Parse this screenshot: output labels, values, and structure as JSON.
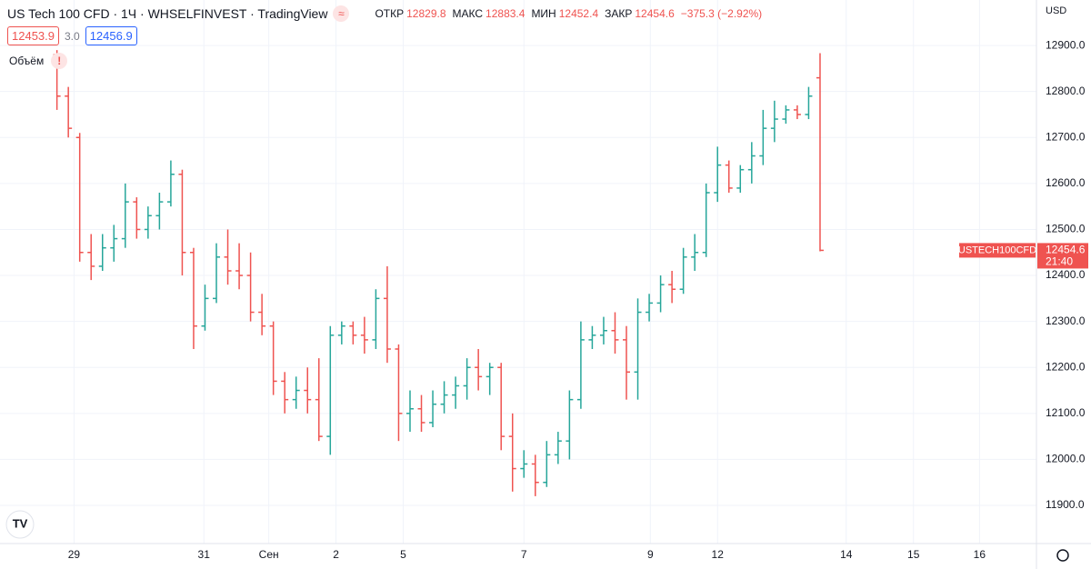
{
  "header": {
    "title": "US Tech 100 CFD · 1Ч · WHSELFINVEST · TradingView",
    "open_label": "ОТКР",
    "open": "12829.8",
    "high_label": "МАКС",
    "high": "12883.4",
    "low_label": "МИН",
    "low": "12452.4",
    "close_label": "ЗАКР",
    "close": "12454.6",
    "change": "−375.3 (−2.92%)"
  },
  "quote": {
    "bid": "12453.9",
    "spread": "3.0",
    "ask": "12456.9"
  },
  "volume_label": "Объём",
  "currency": "USD",
  "price_tag": {
    "symbol": "USTECH100CFD",
    "price": "12454.6",
    "countdown": "21:40"
  },
  "chart_data": {
    "type": "ohlc",
    "up_color": "#26a69a",
    "down_color": "#ef5350",
    "grid": true,
    "x": [
      0,
      1,
      2,
      3,
      4,
      5,
      6,
      7,
      8,
      9,
      10,
      11,
      12,
      13,
      14,
      15,
      16,
      17,
      18,
      19,
      20,
      21,
      22,
      23,
      24,
      25,
      26,
      27,
      28,
      29,
      30,
      31,
      32,
      33,
      34,
      35,
      36,
      37,
      38,
      39,
      40,
      41,
      42,
      43,
      44,
      45,
      46,
      47,
      48,
      49,
      50,
      51,
      52,
      53,
      54,
      55,
      56,
      57,
      58,
      59,
      60,
      61,
      62,
      63,
      64,
      65,
      66,
      67
    ],
    "open": [
      12880,
      12790,
      12700,
      12450,
      12420,
      12460,
      12480,
      12560,
      12500,
      12530,
      12560,
      12620,
      12450,
      12290,
      12350,
      12440,
      12410,
      12400,
      12320,
      12290,
      12170,
      12130,
      12150,
      12130,
      12050,
      12270,
      12290,
      12270,
      12260,
      12350,
      12240,
      12100,
      12110,
      12080,
      12120,
      12140,
      12160,
      12200,
      12180,
      12200,
      12050,
      11980,
      11990,
      11950,
      12010,
      12040,
      12130,
      12260,
      12270,
      12280,
      12260,
      12190,
      12320,
      12340,
      12380,
      12370,
      12440,
      12450,
      12580,
      12640,
      12590,
      12630,
      12660,
      12720,
      12740,
      12760,
      12750,
      12829.8
    ],
    "high": [
      12890,
      12810,
      12710,
      12490,
      12490,
      12510,
      12600,
      12570,
      12550,
      12580,
      12650,
      12630,
      12460,
      12380,
      12470,
      12500,
      12470,
      12450,
      12360,
      12300,
      12190,
      12180,
      12200,
      12220,
      12290,
      12300,
      12300,
      12310,
      12370,
      12420,
      12250,
      12150,
      12140,
      12150,
      12170,
      12180,
      12220,
      12240,
      12210,
      12210,
      12100,
      12020,
      12010,
      12040,
      12060,
      12150,
      12300,
      12290,
      12310,
      12320,
      12290,
      12350,
      12360,
      12400,
      12410,
      12460,
      12490,
      12600,
      12680,
      12650,
      12640,
      12690,
      12760,
      12780,
      12770,
      12770,
      12810,
      12883.4
    ],
    "low": [
      12760,
      12700,
      12430,
      12390,
      12410,
      12430,
      12460,
      12480,
      12480,
      12500,
      12550,
      12400,
      12240,
      12280,
      12340,
      12380,
      12370,
      12300,
      12270,
      12140,
      12100,
      12110,
      12100,
      12040,
      12010,
      12250,
      12250,
      12230,
      12240,
      12210,
      12040,
      12060,
      12060,
      12070,
      12100,
      12110,
      12130,
      12150,
      12140,
      12020,
      11930,
      11960,
      11920,
      11940,
      11990,
      12000,
      12110,
      12240,
      12250,
      12230,
      12130,
      12130,
      12300,
      12320,
      12340,
      12360,
      12410,
      12440,
      12560,
      12580,
      12580,
      12600,
      12640,
      12690,
      12730,
      12740,
      12740,
      12452.4
    ],
    "close": [
      12790,
      12720,
      12450,
      12420,
      12460,
      12480,
      12560,
      12500,
      12530,
      12560,
      12620,
      12450,
      12290,
      12350,
      12440,
      12410,
      12400,
      12320,
      12290,
      12170,
      12130,
      12150,
      12130,
      12050,
      12270,
      12290,
      12270,
      12260,
      12350,
      12240,
      12100,
      12110,
      12080,
      12120,
      12140,
      12160,
      12200,
      12180,
      12200,
      12050,
      11980,
      11990,
      11950,
      12010,
      12040,
      12130,
      12260,
      12270,
      12280,
      12260,
      12190,
      12320,
      12340,
      12380,
      12370,
      12440,
      12450,
      12580,
      12640,
      12590,
      12630,
      12660,
      12720,
      12740,
      12760,
      12750,
      12790,
      12454.6
    ],
    "xlim": [
      -5,
      86
    ],
    "xticks": [
      {
        "value": 1.5,
        "label": "29"
      },
      {
        "value": 12.9,
        "label": "31"
      },
      {
        "value": 18.6,
        "label": "Сен"
      },
      {
        "value": 24.5,
        "label": "2"
      },
      {
        "value": 30.4,
        "label": "5"
      },
      {
        "value": 41,
        "label": "7"
      },
      {
        "value": 52.1,
        "label": "9"
      },
      {
        "value": 58,
        "label": "12"
      },
      {
        "value": 69.3,
        "label": "14"
      },
      {
        "value": 75.2,
        "label": "15"
      },
      {
        "value": 81,
        "label": "16"
      }
    ],
    "ylim": [
      11817,
      12999
    ],
    "yticks": [
      {
        "value": 11900,
        "label": "11900.0"
      },
      {
        "value": 12000,
        "label": "12000.0"
      },
      {
        "value": 12100,
        "label": "12100.0"
      },
      {
        "value": 12200,
        "label": "12200.0"
      },
      {
        "value": 12300,
        "label": "12300.0"
      },
      {
        "value": 12400,
        "label": "12400.0"
      },
      {
        "value": 12500,
        "label": "12500.0"
      },
      {
        "value": 12600,
        "label": "12600.0"
      },
      {
        "value": 12700,
        "label": "12700.0"
      },
      {
        "value": 12800,
        "label": "12800.0"
      },
      {
        "value": 12900,
        "label": "12900.0"
      }
    ]
  }
}
